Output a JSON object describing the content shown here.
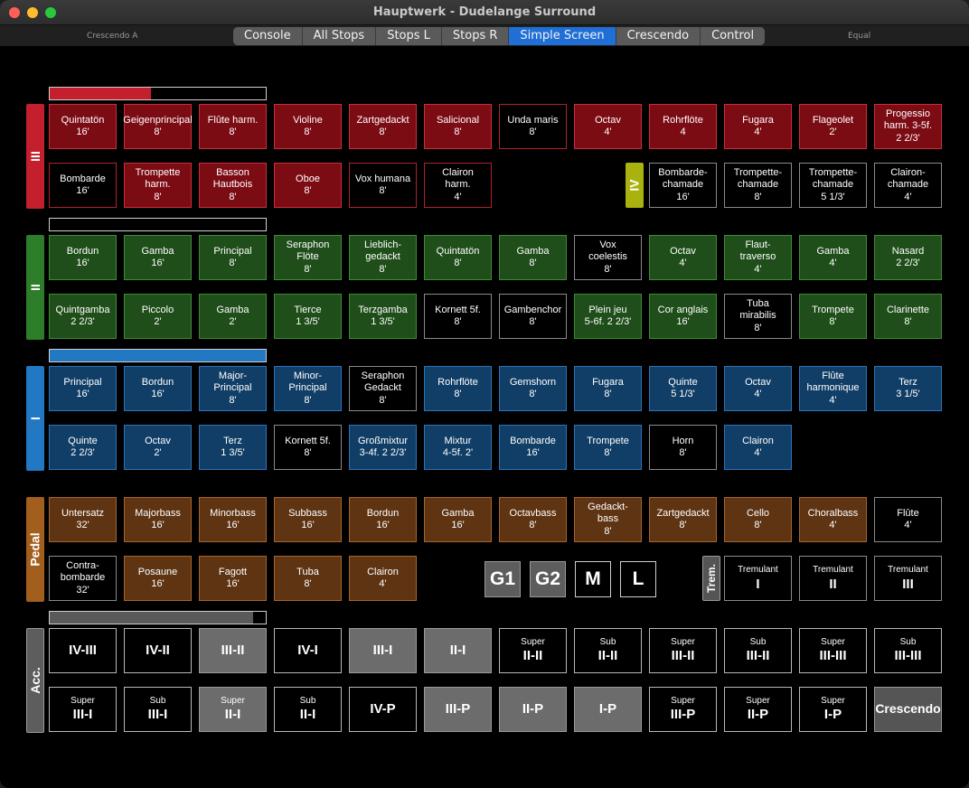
{
  "window": {
    "title": "Hauptwerk - Dudelange Surround"
  },
  "toolbar": {
    "left_label": "Crescendo A",
    "right_label": "Equal",
    "tabs": [
      {
        "label": "Console",
        "selected": false
      },
      {
        "label": "All Stops",
        "selected": false
      },
      {
        "label": "Stops L",
        "selected": false
      },
      {
        "label": "Stops R",
        "selected": false
      },
      {
        "label": "Simple Screen",
        "selected": true
      },
      {
        "label": "Crescendo",
        "selected": false
      },
      {
        "label": "Control",
        "selected": false
      }
    ]
  },
  "colors": {
    "swell": "#7c0c14",
    "swell_label": "#c31f2c",
    "great_ii": "#1f4e1a",
    "great_label": "#2e7d28",
    "positive_i": "#113e66",
    "positive_label": "#2378c3",
    "pedal": "#5e3413",
    "pedal_label": "#a25e1c",
    "iv_label": "#aab20f",
    "accessories_label": "#5d5d5d"
  },
  "meters": {
    "swell_expression": 0.47,
    "great_expression": 0.0,
    "positive_expression": 1.0,
    "crescendo": 0.94
  },
  "divisions": {
    "III": {
      "label": "III",
      "stops": [
        {
          "name": "Quintatön",
          "pitch": "16'",
          "on": true
        },
        {
          "name": "Geigenprincipal",
          "pitch": "8'",
          "on": true
        },
        {
          "name": "Flûte harm.",
          "pitch": "8'",
          "on": true
        },
        {
          "name": "Violine",
          "pitch": "8'",
          "on": true
        },
        {
          "name": "Zartgedackt",
          "pitch": "8'",
          "on": true
        },
        {
          "name": "Salicional",
          "pitch": "8'",
          "on": true
        },
        {
          "name": "Unda maris",
          "pitch": "8'",
          "on": false
        },
        {
          "name": "Octav",
          "pitch": "4'",
          "on": true
        },
        {
          "name": "Rohrflöte",
          "pitch": "4",
          "on": true
        },
        {
          "name": "Fugara",
          "pitch": "4'",
          "on": true
        },
        {
          "name": "Flageolet",
          "pitch": "2'",
          "on": true
        },
        {
          "name": "Progessio\nharm. 3-5f.",
          "pitch": "2 2/3'",
          "on": true
        },
        {
          "name": "Bombarde",
          "pitch": "16'",
          "on": false
        },
        {
          "name": "Trompette\nharm.",
          "pitch": "8'",
          "on": true
        },
        {
          "name": "Basson\nHautbois",
          "pitch": "8'",
          "on": true
        },
        {
          "name": "Oboe",
          "pitch": "8'",
          "on": true
        },
        {
          "name": "Vox humana",
          "pitch": "8'",
          "on": false
        },
        {
          "name": "Clairon\nharm.",
          "pitch": "4'",
          "on": false
        }
      ]
    },
    "IV": {
      "label": "IV",
      "stops": [
        {
          "name": "Bombarde-\nchamade",
          "pitch": "16'",
          "on": false
        },
        {
          "name": "Trompette-\nchamade",
          "pitch": "8'",
          "on": false
        },
        {
          "name": "Trompette-\nchamade",
          "pitch": "5 1/3'",
          "on": false
        },
        {
          "name": "Clairon-\nchamade",
          "pitch": "4'",
          "on": false
        }
      ]
    },
    "II": {
      "label": "II",
      "stops": [
        {
          "name": "Bordun",
          "pitch": "16'",
          "on": true
        },
        {
          "name": "Gamba",
          "pitch": "16'",
          "on": true
        },
        {
          "name": "Principal",
          "pitch": "8'",
          "on": true
        },
        {
          "name": "Seraphon\nFlöte",
          "pitch": "8'",
          "on": true
        },
        {
          "name": "Lieblich-\ngedackt",
          "pitch": "8'",
          "on": true
        },
        {
          "name": "Quintatön",
          "pitch": "8'",
          "on": true
        },
        {
          "name": "Gamba",
          "pitch": "8'",
          "on": true
        },
        {
          "name": "Vox\ncoelestis",
          "pitch": "8'",
          "on": false
        },
        {
          "name": "Octav",
          "pitch": "4'",
          "on": true
        },
        {
          "name": "Flaut-\ntraverso",
          "pitch": "4'",
          "on": true
        },
        {
          "name": "Gamba",
          "pitch": "4'",
          "on": true
        },
        {
          "name": "Nasard",
          "pitch": "2 2/3'",
          "on": true
        },
        {
          "name": "Quintgamba",
          "pitch": "2 2/3'",
          "on": true
        },
        {
          "name": "Piccolo",
          "pitch": "2'",
          "on": true
        },
        {
          "name": "Gamba",
          "pitch": "2'",
          "on": true
        },
        {
          "name": "Tierce",
          "pitch": "1 3/5'",
          "on": true
        },
        {
          "name": "Terzgamba",
          "pitch": "1 3/5'",
          "on": true
        },
        {
          "name": "Kornett 5f.",
          "pitch": "8'",
          "on": false
        },
        {
          "name": "Gambenchor",
          "pitch": "8'",
          "on": false
        },
        {
          "name": "Plein jeu",
          "pitch": "5-6f. 2 2/3'",
          "on": true
        },
        {
          "name": "Cor anglais",
          "pitch": "16'",
          "on": true
        },
        {
          "name": "Tuba\nmirabilis",
          "pitch": "8'",
          "on": false
        },
        {
          "name": "Trompete",
          "pitch": "8'",
          "on": true
        },
        {
          "name": "Clarinette",
          "pitch": "8'",
          "on": true
        }
      ]
    },
    "I": {
      "label": "I",
      "stops": [
        {
          "name": "Principal",
          "pitch": "16'",
          "on": true
        },
        {
          "name": "Bordun",
          "pitch": "16'",
          "on": true
        },
        {
          "name": "Major-\nPrincipal",
          "pitch": "8'",
          "on": true
        },
        {
          "name": "Minor-\nPrincipal",
          "pitch": "8'",
          "on": true
        },
        {
          "name": "Seraphon\nGedackt",
          "pitch": "8'",
          "on": false
        },
        {
          "name": "Rohrflöte",
          "pitch": "8'",
          "on": true
        },
        {
          "name": "Gemshorn",
          "pitch": "8'",
          "on": true
        },
        {
          "name": "Fugara",
          "pitch": "8'",
          "on": true
        },
        {
          "name": "Quinte",
          "pitch": "5 1/3'",
          "on": true
        },
        {
          "name": "Octav",
          "pitch": "4'",
          "on": true
        },
        {
          "name": "Flûte\nharmonique",
          "pitch": "4'",
          "on": true
        },
        {
          "name": "Terz",
          "pitch": "3 1/5'",
          "on": true
        },
        {
          "name": "Quinte",
          "pitch": "2 2/3'",
          "on": true
        },
        {
          "name": "Octav",
          "pitch": "2'",
          "on": true
        },
        {
          "name": "Terz",
          "pitch": "1 3/5'",
          "on": true
        },
        {
          "name": "Kornett 5f.",
          "pitch": "8'",
          "on": false
        },
        {
          "name": "Großmixtur",
          "pitch": "3-4f. 2 2/3'",
          "on": true
        },
        {
          "name": "Mixtur",
          "pitch": "4-5f. 2'",
          "on": true
        },
        {
          "name": "Bombarde",
          "pitch": "16'",
          "on": true
        },
        {
          "name": "Trompete",
          "pitch": "8'",
          "on": true
        },
        {
          "name": "Horn",
          "pitch": "8'",
          "on": false
        },
        {
          "name": "Clairon",
          "pitch": "4'",
          "on": true
        }
      ]
    },
    "Pedal": {
      "label": "Pedal",
      "stops": [
        {
          "name": "Untersatz",
          "pitch": "32'",
          "on": true
        },
        {
          "name": "Majorbass",
          "pitch": "16'",
          "on": true
        },
        {
          "name": "Minorbass",
          "pitch": "16'",
          "on": true
        },
        {
          "name": "Subbass",
          "pitch": "16'",
          "on": true
        },
        {
          "name": "Bordun",
          "pitch": "16'",
          "on": true
        },
        {
          "name": "Gamba",
          "pitch": "16'",
          "on": true
        },
        {
          "name": "Octavbass",
          "pitch": "8'",
          "on": true
        },
        {
          "name": "Gedackt-\nbass",
          "pitch": "8'",
          "on": true
        },
        {
          "name": "Zartgedackt",
          "pitch": "8'",
          "on": true
        },
        {
          "name": "Cello",
          "pitch": "8'",
          "on": true
        },
        {
          "name": "Choralbass",
          "pitch": "4'",
          "on": true
        },
        {
          "name": "Flûte",
          "pitch": "4'",
          "on": false
        },
        {
          "name": "Contra-\nbombarde",
          "pitch": "32'",
          "on": false
        },
        {
          "name": "Posaune",
          "pitch": "16'",
          "on": true
        },
        {
          "name": "Fagott",
          "pitch": "16'",
          "on": true
        },
        {
          "name": "Tuba",
          "pitch": "8'",
          "on": true
        },
        {
          "name": "Clairon",
          "pitch": "4'",
          "on": true
        }
      ]
    }
  },
  "general_buttons": [
    {
      "label": "G1",
      "on": true
    },
    {
      "label": "G2",
      "on": true
    },
    {
      "label": "M",
      "on": false
    },
    {
      "label": "L",
      "on": false
    }
  ],
  "tremulants": {
    "label": "Trem.",
    "items": [
      {
        "top": "Tremulant",
        "big": "I"
      },
      {
        "top": "Tremulant",
        "big": "II"
      },
      {
        "top": "Tremulant",
        "big": "III"
      }
    ]
  },
  "accessories": {
    "label": "Acc.",
    "couplers": [
      {
        "top": "",
        "big": "IV-III",
        "on": false
      },
      {
        "top": "",
        "big": "IV-II",
        "on": false
      },
      {
        "top": "",
        "big": "III-II",
        "on": true
      },
      {
        "top": "",
        "big": "IV-I",
        "on": false
      },
      {
        "top": "",
        "big": "III-I",
        "on": true
      },
      {
        "top": "",
        "big": "II-I",
        "on": true
      },
      {
        "top": "Super",
        "big": "II-II",
        "on": false
      },
      {
        "top": "Sub",
        "big": "II-II",
        "on": false
      },
      {
        "top": "Super",
        "big": "III-II",
        "on": false
      },
      {
        "top": "Sub",
        "big": "III-II",
        "on": false
      },
      {
        "top": "Super",
        "big": "III-III",
        "on": false
      },
      {
        "top": "Sub",
        "big": "III-III",
        "on": false
      },
      {
        "top": "Super",
        "big": "III-I",
        "on": false
      },
      {
        "top": "Sub",
        "big": "III-I",
        "on": false
      },
      {
        "top": "Super",
        "big": "II-I",
        "on": true
      },
      {
        "top": "Sub",
        "big": "II-I",
        "on": false
      },
      {
        "top": "",
        "big": "IV-P",
        "on": false
      },
      {
        "top": "",
        "big": "III-P",
        "on": true
      },
      {
        "top": "",
        "big": "II-P",
        "on": true
      },
      {
        "top": "",
        "big": "I-P",
        "on": true
      },
      {
        "top": "Super",
        "big": "III-P",
        "on": false
      },
      {
        "top": "Super",
        "big": "II-P",
        "on": false
      },
      {
        "top": "Super",
        "big": "I-P",
        "on": false
      }
    ],
    "crescendo_label": "Crescendo"
  }
}
